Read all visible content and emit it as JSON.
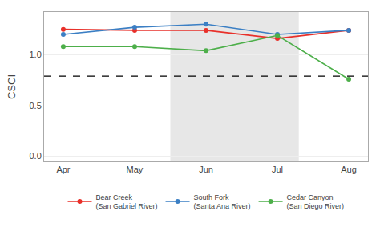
{
  "chart_data": {
    "type": "line",
    "ylabel": "CSCI",
    "categories": [
      "Apr",
      "May",
      "Jun",
      "Jul",
      "Aug"
    ],
    "series": [
      {
        "name": "Bear Creek\n(San Gabriel River)",
        "color": "#e8302a",
        "values": [
          1.25,
          1.24,
          1.24,
          1.16,
          1.24
        ]
      },
      {
        "name": "South Fork\n(Santa Ana River)",
        "color": "#3b7fc4",
        "values": [
          1.2,
          1.27,
          1.3,
          1.2,
          1.24
        ]
      },
      {
        "name": "Cedar Canyon\n(San Diego River)",
        "color": "#4daf4a",
        "values": [
          1.08,
          1.08,
          1.04,
          1.19,
          0.76
        ]
      }
    ],
    "ylim": [
      -0.05,
      1.42
    ],
    "yticks": [
      {
        "value": 0,
        "label": "0.0"
      },
      0.5,
      {
        "value": 1,
        "label": "1.0"
      }
    ],
    "grid": true,
    "legend": "bottom",
    "marker": "circle",
    "reference_line": {
      "y": 0.79,
      "line_style": "dashed"
    },
    "shaded_range": [
      1.5,
      3.3
    ]
  }
}
